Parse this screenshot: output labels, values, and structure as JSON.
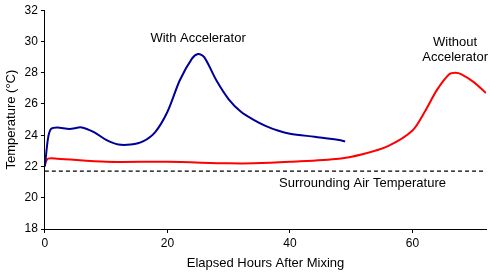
{
  "chart_data": {
    "type": "line",
    "x_label": "Elapsed Hours After Mixing",
    "y_label": "Temperature (°C)",
    "xlim": [
      0,
      72
    ],
    "xticks": [
      0,
      20,
      40,
      60
    ],
    "ylim": [
      18,
      32
    ],
    "yticks": [
      18,
      20,
      22,
      24,
      26,
      28,
      30,
      32
    ],
    "grid": false,
    "series": [
      {
        "name": "With Accelerator",
        "color": "#000099",
        "line_style": "solid",
        "x": [
          0,
          0.5,
          1,
          2,
          4,
          6,
          8,
          10,
          12,
          14,
          16,
          18,
          20,
          22,
          24,
          25,
          26,
          28,
          30,
          32,
          34,
          36,
          38,
          40,
          44,
          48,
          49
        ],
        "values": [
          22,
          23.8,
          24.4,
          24.5,
          24.4,
          24.5,
          24.2,
          23.7,
          23.4,
          23.4,
          23.6,
          24.2,
          25.5,
          27.5,
          28.9,
          29.2,
          29.0,
          27.5,
          26.3,
          25.5,
          25.0,
          24.6,
          24.3,
          24.1,
          23.9,
          23.7,
          23.6
        ]
      },
      {
        "name": "Without Accelerator",
        "color": "#ff0000",
        "line_style": "solid",
        "x": [
          0,
          0.5,
          2,
          10,
          20,
          30,
          34,
          40,
          48,
          52,
          56,
          60,
          62,
          64,
          66,
          67,
          68,
          70,
          72
        ],
        "values": [
          22.2,
          22.5,
          22.5,
          22.3,
          22.3,
          22.2,
          22.2,
          22.3,
          22.5,
          22.8,
          23.3,
          24.3,
          25.5,
          26.9,
          27.9,
          28.0,
          27.9,
          27.4,
          26.7
        ]
      },
      {
        "name": "Surrounding Air Temperature",
        "color": "#000000",
        "line_style": "dashed",
        "x": [
          0,
          72
        ],
        "values": [
          21.7,
          21.7
        ]
      }
    ]
  }
}
